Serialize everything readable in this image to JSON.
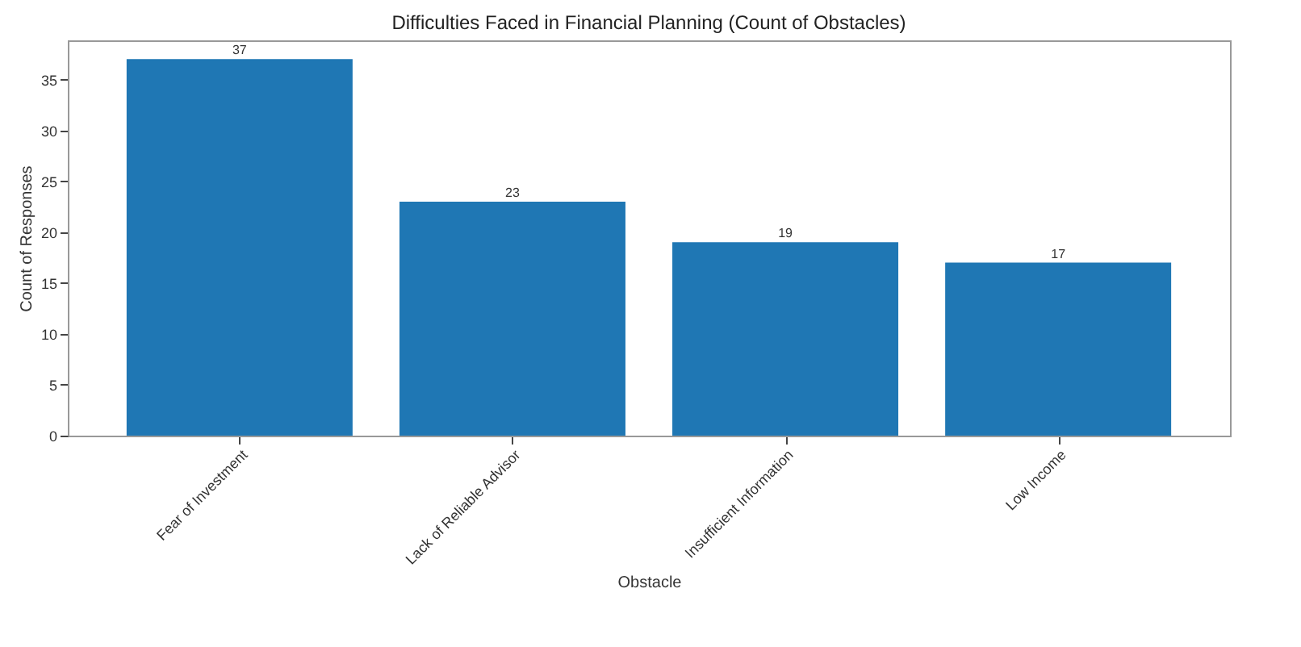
{
  "chart_data": {
    "type": "bar",
    "title": "Difficulties Faced in Financial Planning (Count of Obstacles)",
    "xlabel": "Obstacle",
    "ylabel": "Count of Responses",
    "categories": [
      "Fear of Investment",
      "Lack of Reliable Advisor",
      "Insufficient Information",
      "Low Income"
    ],
    "values": [
      37,
      23,
      19,
      17
    ],
    "color": "#1f77b4",
    "ylim": [
      0,
      38.85
    ],
    "yticks": [
      0,
      5,
      10,
      15,
      20,
      25,
      30,
      35
    ],
    "grid": false,
    "data_labels": true
  }
}
